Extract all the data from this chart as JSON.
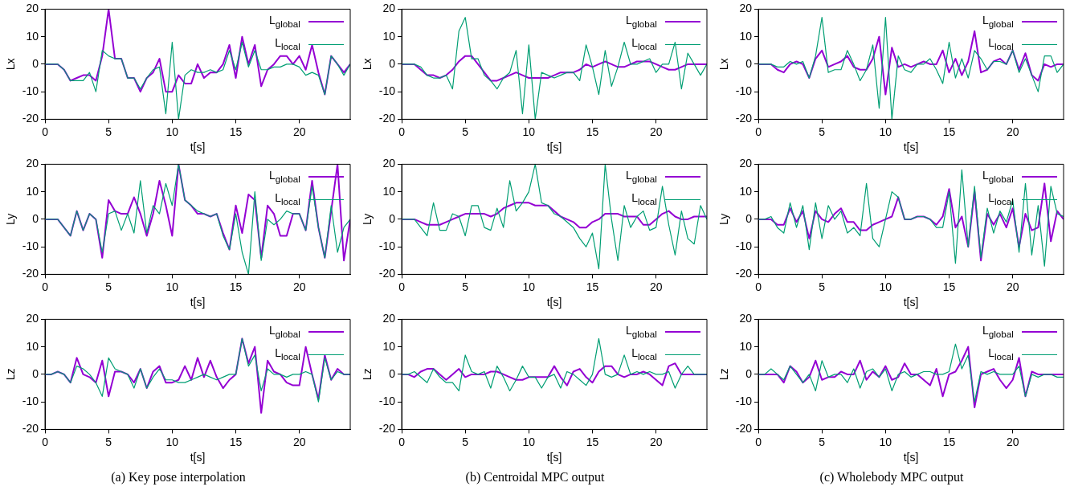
{
  "chart_data": [
    {
      "type": "line",
      "xlabel": "t[s]",
      "ylabel": "Lx",
      "xlim": [
        0,
        24
      ],
      "xticks": [
        0,
        5,
        10,
        15,
        20
      ],
      "ylim": [
        -20,
        20
      ],
      "yticks": [
        -20,
        -10,
        0,
        10,
        20
      ],
      "legend": "top right",
      "marker": "none",
      "x": [
        0,
        0.5,
        1,
        1.5,
        2,
        2.5,
        3,
        3.5,
        4,
        4.5,
        5,
        5.5,
        6,
        6.5,
        7,
        7.5,
        8,
        8.5,
        9,
        9.5,
        10,
        10.5,
        11,
        11.5,
        12,
        12.5,
        13,
        13.5,
        14,
        14.5,
        15,
        15.5,
        16,
        16.5,
        17,
        17.5,
        18,
        18.5,
        19,
        19.5,
        20,
        20.5,
        21,
        21.5,
        22,
        22.5,
        23,
        23.5,
        24
      ],
      "series": [
        {
          "name": "L$_{global}$",
          "color": "#9400d3",
          "values": [
            0,
            0,
            0,
            -2,
            -6,
            -5,
            -4,
            -4,
            -6,
            3,
            20,
            2,
            2,
            -5,
            -5,
            -10,
            -5,
            -3,
            2,
            -10,
            -10,
            -4,
            -7,
            -7,
            0,
            -5,
            -3,
            -3,
            0,
            7,
            -5,
            10,
            0,
            7,
            -8,
            -2,
            0,
            3,
            3,
            0,
            3,
            -2,
            7,
            -3,
            -11,
            3,
            0,
            -3,
            0
          ]
        },
        {
          "name": "L$_{local}$",
          "color": "#009e73",
          "values": [
            0,
            0,
            0,
            -2,
            -6,
            -6,
            -6,
            -3,
            -10,
            5,
            3,
            2,
            2,
            -5,
            -5,
            -9,
            -5,
            -2,
            -1,
            -18,
            8,
            -20,
            -4,
            -2,
            -3,
            -3,
            -2,
            -3,
            -2,
            5,
            -2,
            8,
            -1,
            5,
            -2,
            -2,
            -1,
            -1,
            0,
            0,
            -1,
            -4,
            -3,
            -4,
            -11,
            3,
            0,
            -4,
            0
          ]
        }
      ]
    },
    {
      "type": "line",
      "xlabel": "t[s]",
      "ylabel": "Lx",
      "xlim": [
        0,
        24
      ],
      "xticks": [
        0,
        5,
        10,
        15,
        20
      ],
      "ylim": [
        -20,
        20
      ],
      "yticks": [
        -20,
        -10,
        0,
        10,
        20
      ],
      "legend": "top right",
      "marker": "none",
      "x": [
        0,
        0.5,
        1,
        1.5,
        2,
        2.5,
        3,
        3.5,
        4,
        4.5,
        5,
        5.5,
        6,
        6.5,
        7,
        7.5,
        8,
        8.5,
        9,
        9.5,
        10,
        10.5,
        11,
        11.5,
        12,
        12.5,
        13,
        13.5,
        14,
        14.5,
        15,
        15.5,
        16,
        16.5,
        17,
        17.5,
        18,
        18.5,
        19,
        19.5,
        20,
        20.5,
        21,
        21.5,
        22,
        22.5,
        23,
        23.5,
        24
      ],
      "series": [
        {
          "name": "L$_{global}$",
          "color": "#9400d3",
          "values": [
            0,
            0,
            0,
            -2,
            -4,
            -4,
            -5,
            -4,
            -2,
            1,
            3,
            3,
            0,
            -3,
            -6,
            -6,
            -5,
            -4,
            -3,
            -4,
            -5,
            -5,
            -5,
            -5,
            -4,
            -3,
            -3,
            -3,
            -2,
            0,
            -1,
            0,
            1,
            0,
            -1,
            -1,
            0,
            1,
            1,
            1,
            0,
            -1,
            -2,
            -2,
            -1,
            0,
            0,
            0,
            0
          ]
        },
        {
          "name": "L$_{local}$",
          "color": "#009e73",
          "values": [
            0,
            0,
            0,
            -1,
            -4,
            -5,
            -5,
            -4,
            -9,
            12,
            17,
            2,
            2,
            -4,
            -6,
            -9,
            -5,
            -3,
            5,
            -18,
            7,
            -20,
            -3,
            -4,
            -5,
            -4,
            -3,
            -3,
            -6,
            7,
            -1,
            -11,
            5,
            -8,
            -1,
            8,
            0,
            0,
            1,
            2,
            -3,
            0,
            0,
            8,
            -9,
            4,
            0,
            -4,
            0
          ]
        }
      ]
    },
    {
      "type": "line",
      "xlabel": "t[s]",
      "ylabel": "Lx",
      "xlim": [
        0,
        24
      ],
      "xticks": [
        0,
        5,
        10,
        15,
        20
      ],
      "ylim": [
        -20,
        20
      ],
      "yticks": [
        -20,
        -10,
        0,
        10,
        20
      ],
      "legend": "top right",
      "marker": "none",
      "x": [
        0,
        0.5,
        1,
        1.5,
        2,
        2.5,
        3,
        3.5,
        4,
        4.5,
        5,
        5.5,
        6,
        6.5,
        7,
        7.5,
        8,
        8.5,
        9,
        9.5,
        10,
        10.5,
        11,
        11.5,
        12,
        12.5,
        13,
        13.5,
        14,
        14.5,
        15,
        15.5,
        16,
        16.5,
        17,
        17.5,
        18,
        18.5,
        19,
        19.5,
        20,
        20.5,
        21,
        21.5,
        22,
        22.5,
        23,
        23.5,
        24
      ],
      "series": [
        {
          "name": "L$_{global}$",
          "color": "#9400d3",
          "values": [
            0,
            0,
            0,
            -2,
            -3,
            0,
            1,
            0,
            -5,
            2,
            5,
            -1,
            0,
            1,
            3,
            -1,
            -2,
            -2,
            2,
            10,
            -11,
            6,
            -1,
            0,
            -1,
            0,
            1,
            0,
            0,
            5,
            -3,
            2,
            -4,
            1,
            12,
            -3,
            -2,
            1,
            2,
            0,
            5,
            -2,
            4,
            -4,
            -6,
            0,
            -1,
            0,
            0
          ]
        },
        {
          "name": "L$_{local}$",
          "color": "#009e73",
          "values": [
            0,
            0,
            0,
            -1,
            -1,
            1,
            0,
            1,
            -5,
            3,
            17,
            -3,
            -2,
            -2,
            5,
            0,
            -6,
            -2,
            7,
            -16,
            17,
            -20,
            3,
            -2,
            -3,
            0,
            0,
            2,
            -2,
            -7,
            8,
            -5,
            2,
            -5,
            5,
            2,
            -2,
            1,
            1,
            0,
            5,
            -3,
            2,
            -4,
            -10,
            3,
            3,
            -3,
            0
          ]
        }
      ]
    },
    {
      "type": "line",
      "xlabel": "t[s]",
      "ylabel": "Ly",
      "xlim": [
        0,
        24
      ],
      "xticks": [
        0,
        5,
        10,
        15,
        20
      ],
      "ylim": [
        -20,
        20
      ],
      "yticks": [
        -20,
        -10,
        0,
        10,
        20
      ],
      "legend": "top right",
      "marker": "none",
      "x": [
        0,
        0.5,
        1,
        1.5,
        2,
        2.5,
        3,
        3.5,
        4,
        4.5,
        5,
        5.5,
        6,
        6.5,
        7,
        7.5,
        8,
        8.5,
        9,
        9.5,
        10,
        10.5,
        11,
        11.5,
        12,
        12.5,
        13,
        13.5,
        14,
        14.5,
        15,
        15.5,
        16,
        16.5,
        17,
        17.5,
        18,
        18.5,
        19,
        19.5,
        20,
        20.5,
        21,
        21.5,
        22,
        22.5,
        23,
        23.5,
        24
      ],
      "series": [
        {
          "name": "L$_{global}$",
          "color": "#9400d3",
          "values": [
            0,
            0,
            0,
            -3,
            -6,
            3,
            -4,
            2,
            0,
            -14,
            7,
            3,
            2,
            2,
            8,
            2,
            -6,
            2,
            14,
            5,
            -6,
            20,
            7,
            5,
            2,
            2,
            1,
            2,
            -5,
            -11,
            5,
            -5,
            9,
            7,
            -14,
            5,
            2,
            -6,
            -6,
            2,
            2,
            -4,
            14,
            -3,
            -14,
            3,
            20,
            -15,
            0
          ]
        },
        {
          "name": "L$_{local}$",
          "color": "#009e73",
          "values": [
            0,
            0,
            0,
            -3,
            -6,
            3,
            -4,
            2,
            0,
            -12,
            2,
            3,
            -4,
            2,
            -5,
            14,
            -5,
            5,
            2,
            13,
            5,
            20,
            7,
            5,
            3,
            2,
            1,
            2,
            -6,
            -11,
            2,
            -12,
            -20,
            10,
            -15,
            0,
            -2,
            0,
            3,
            2,
            2,
            -4,
            12,
            -3,
            -14,
            5,
            -12,
            -3,
            0
          ]
        }
      ]
    },
    {
      "type": "line",
      "xlabel": "t[s]",
      "ylabel": "Ly",
      "xlim": [
        0,
        24
      ],
      "xticks": [
        0,
        5,
        10,
        15,
        20
      ],
      "ylim": [
        -20,
        20
      ],
      "yticks": [
        -20,
        -10,
        0,
        10,
        20
      ],
      "legend": "top right",
      "marker": "none",
      "x": [
        0,
        0.5,
        1,
        1.5,
        2,
        2.5,
        3,
        3.5,
        4,
        4.5,
        5,
        5.5,
        6,
        6.5,
        7,
        7.5,
        8,
        8.5,
        9,
        9.5,
        10,
        10.5,
        11,
        11.5,
        12,
        12.5,
        13,
        13.5,
        14,
        14.5,
        15,
        15.5,
        16,
        16.5,
        17,
        17.5,
        18,
        18.5,
        19,
        19.5,
        20,
        20.5,
        21,
        21.5,
        22,
        22.5,
        23,
        23.5,
        24
      ],
      "series": [
        {
          "name": "L$_{global}$",
          "color": "#9400d3",
          "values": [
            0,
            0,
            0,
            -1,
            -2,
            -2,
            -2,
            -1,
            0,
            1,
            2,
            2,
            2,
            2,
            1,
            2,
            4,
            5,
            6,
            6,
            6,
            5,
            5,
            5,
            3,
            1,
            0,
            -1,
            -3,
            -3,
            -1,
            0,
            2,
            2,
            2,
            1,
            1,
            1,
            -2,
            -2,
            0,
            2,
            3,
            1,
            0,
            0,
            1,
            1,
            1
          ]
        },
        {
          "name": "L$_{local}$",
          "color": "#009e73",
          "values": [
            0,
            0,
            0,
            -3,
            -6,
            6,
            -4,
            -4,
            2,
            1,
            -6,
            5,
            5,
            -3,
            -4,
            4,
            -3,
            14,
            3,
            6,
            10,
            20,
            6,
            5,
            2,
            1,
            -1,
            -3,
            -7,
            -10,
            -5,
            -18,
            20,
            0,
            -15,
            5,
            -3,
            1,
            3,
            -4,
            -3,
            12,
            -2,
            -13,
            3,
            -7,
            -9,
            5,
            0
          ]
        }
      ]
    },
    {
      "type": "line",
      "xlabel": "t[s]",
      "ylabel": "Ly",
      "xlim": [
        0,
        24
      ],
      "xticks": [
        0,
        5,
        10,
        15,
        20
      ],
      "ylim": [
        -20,
        20
      ],
      "yticks": [
        -20,
        -10,
        0,
        10,
        20
      ],
      "legend": "top right",
      "marker": "none",
      "x": [
        0,
        0.5,
        1,
        1.5,
        2,
        2.5,
        3,
        3.5,
        4,
        4.5,
        5,
        5.5,
        6,
        6.5,
        7,
        7.5,
        8,
        8.5,
        9,
        9.5,
        10,
        10.5,
        11,
        11.5,
        12,
        12.5,
        13,
        13.5,
        14,
        14.5,
        15,
        15.5,
        16,
        16.5,
        17,
        17.5,
        18,
        18.5,
        19,
        19.5,
        20,
        20.5,
        21,
        21.5,
        22,
        22.5,
        23,
        23.5,
        24
      ],
      "series": [
        {
          "name": "L$_{global}$",
          "color": "#9400d3",
          "values": [
            0,
            0,
            0,
            -2,
            -2,
            4,
            -1,
            3,
            -7,
            3,
            0,
            -1,
            2,
            4,
            -1,
            -1,
            -4,
            -4,
            -2,
            -1,
            0,
            1,
            8,
            0,
            0,
            1,
            1,
            0,
            -2,
            1,
            11,
            -3,
            1,
            -10,
            10,
            -15,
            2,
            -2,
            2,
            -3,
            4,
            -10,
            2,
            -4,
            -3,
            13,
            -8,
            3,
            0
          ]
        },
        {
          "name": "L$_{local}$",
          "color": "#009e73",
          "values": [
            0,
            0,
            1,
            -3,
            -5,
            6,
            -3,
            5,
            -11,
            6,
            -7,
            5,
            0,
            3,
            -5,
            -3,
            -6,
            13,
            -7,
            -10,
            0,
            10,
            8,
            0,
            0,
            1,
            1,
            0,
            -3,
            -3,
            10,
            -16,
            18,
            -10,
            12,
            -14,
            4,
            -5,
            3,
            -1,
            7,
            -12,
            13,
            -13,
            5,
            -17,
            12,
            2,
            1
          ]
        }
      ]
    },
    {
      "type": "line",
      "xlabel": "t[s]",
      "ylabel": "Lz",
      "xlim": [
        0,
        24
      ],
      "xticks": [
        0,
        5,
        10,
        15,
        20
      ],
      "ylim": [
        -20,
        20
      ],
      "yticks": [
        -20,
        -10,
        0,
        10,
        20
      ],
      "legend": "top right",
      "marker": "none",
      "annotations": [
        "(a) Key pose interpolation"
      ],
      "x": [
        0,
        0.5,
        1,
        1.5,
        2,
        2.5,
        3,
        3.5,
        4,
        4.5,
        5,
        5.5,
        6,
        6.5,
        7,
        7.5,
        8,
        8.5,
        9,
        9.5,
        10,
        10.5,
        11,
        11.5,
        12,
        12.5,
        13,
        13.5,
        14,
        14.5,
        15,
        15.5,
        16,
        16.5,
        17,
        17.5,
        18,
        18.5,
        19,
        19.5,
        20,
        20.5,
        21,
        21.5,
        22,
        22.5,
        23,
        23.5,
        24
      ],
      "series": [
        {
          "name": "L$_{global}$",
          "color": "#9400d3",
          "values": [
            0,
            0,
            1,
            0,
            -3,
            6,
            0,
            -1,
            -3,
            5,
            -8,
            1,
            1,
            0,
            -3,
            2,
            -5,
            1,
            3,
            -3,
            -3,
            -2,
            3,
            -2,
            6,
            -1,
            5,
            -1,
            -5,
            -2,
            0,
            13,
            4,
            10,
            -14,
            5,
            1,
            0,
            -3,
            -4,
            -4,
            10,
            0,
            -9,
            7,
            -2,
            2,
            0,
            0
          ]
        },
        {
          "name": "L$_{local}$",
          "color": "#009e73",
          "values": [
            0,
            0,
            1,
            0,
            -3,
            3,
            2,
            0,
            -3,
            -8,
            6,
            2,
            1,
            0,
            -5,
            2,
            -5,
            -1,
            2,
            -2,
            -2,
            -3,
            -3,
            -2,
            -1,
            0,
            -1,
            -2,
            -1,
            0,
            0,
            13,
            3,
            7,
            -6,
            2,
            0,
            0,
            -1,
            0,
            0,
            1,
            0,
            -10,
            6,
            -2,
            1,
            0,
            0
          ]
        }
      ]
    },
    {
      "type": "line",
      "xlabel": "t[s]",
      "ylabel": "Lz",
      "xlim": [
        0,
        24
      ],
      "xticks": [
        0,
        5,
        10,
        15,
        20
      ],
      "ylim": [
        -20,
        20
      ],
      "yticks": [
        -20,
        -10,
        0,
        10,
        20
      ],
      "legend": "top right",
      "marker": "none",
      "annotations": [
        "(b) Centroidal MPC output"
      ],
      "x": [
        0,
        0.5,
        1,
        1.5,
        2,
        2.5,
        3,
        3.5,
        4,
        4.5,
        5,
        5.5,
        6,
        6.5,
        7,
        7.5,
        8,
        8.5,
        9,
        9.5,
        10,
        10.5,
        11,
        11.5,
        12,
        12.5,
        13,
        13.5,
        14,
        14.5,
        15,
        15.5,
        16,
        16.5,
        17,
        17.5,
        18,
        18.5,
        19,
        19.5,
        20,
        20.5,
        21,
        21.5,
        22,
        22.5,
        23,
        23.5,
        24
      ],
      "series": [
        {
          "name": "L$_{global}$",
          "color": "#9400d3",
          "values": [
            0,
            0,
            -1,
            1,
            2,
            2,
            0,
            -2,
            0,
            2,
            -1,
            0,
            0,
            0,
            1,
            1,
            0,
            -1,
            -2,
            -2,
            -1,
            -1,
            -1,
            -1,
            3,
            -1,
            -4,
            1,
            2,
            -1,
            -3,
            1,
            3,
            3,
            0,
            -1,
            0,
            0,
            1,
            0,
            -2,
            -4,
            3,
            4,
            0,
            0,
            0,
            0,
            0
          ]
        },
        {
          "name": "L$_{local}$",
          "color": "#009e73",
          "values": [
            0,
            0,
            1,
            -1,
            -3,
            2,
            -1,
            -3,
            -3,
            -6,
            7,
            1,
            0,
            1,
            -5,
            3,
            -1,
            -6,
            -2,
            3,
            -1,
            -1,
            -5,
            -1,
            0,
            -5,
            1,
            0,
            -2,
            -4,
            0,
            13,
            0,
            -1,
            0,
            7,
            0,
            1,
            0,
            1,
            0,
            0,
            1,
            -5,
            0,
            3,
            0,
            0,
            0
          ]
        }
      ]
    },
    {
      "type": "line",
      "xlabel": "t[s]",
      "ylabel": "Lz",
      "xlim": [
        0,
        24
      ],
      "xticks": [
        0,
        5,
        10,
        15,
        20
      ],
      "ylim": [
        -20,
        20
      ],
      "yticks": [
        -20,
        -10,
        0,
        10,
        20
      ],
      "legend": "top right",
      "marker": "none",
      "annotations": [
        "(c) Wholebody MPC output"
      ],
      "x": [
        0,
        0.5,
        1,
        1.5,
        2,
        2.5,
        3,
        3.5,
        4,
        4.5,
        5,
        5.5,
        6,
        6.5,
        7,
        7.5,
        8,
        8.5,
        9,
        9.5,
        10,
        10.5,
        11,
        11.5,
        12,
        12.5,
        13,
        13.5,
        14,
        14.5,
        15,
        15.5,
        16,
        16.5,
        17,
        17.5,
        18,
        18.5,
        19,
        19.5,
        20,
        20.5,
        21,
        21.5,
        22,
        22.5,
        23,
        23.5,
        24
      ],
      "series": [
        {
          "name": "L$_{global}$",
          "color": "#9400d3",
          "values": [
            0,
            0,
            0,
            0,
            -3,
            3,
            1,
            -3,
            -1,
            5,
            -2,
            -1,
            -1,
            1,
            0,
            0,
            5,
            -2,
            1,
            -1,
            3,
            -2,
            -1,
            4,
            0,
            0,
            -2,
            -4,
            2,
            -8,
            0,
            1,
            5,
            10,
            -12,
            0,
            1,
            2,
            -2,
            -5,
            -2,
            6,
            -8,
            1,
            0,
            0,
            0,
            0,
            0
          ]
        },
        {
          "name": "L$_{local}$",
          "color": "#009e73",
          "values": [
            0,
            0,
            2,
            0,
            -2,
            3,
            0,
            -3,
            0,
            -6,
            5,
            -1,
            0,
            0,
            -3,
            2,
            -5,
            1,
            2,
            -1,
            2,
            -6,
            0,
            1,
            -1,
            0,
            1,
            1,
            0,
            0,
            1,
            11,
            2,
            7,
            -10,
            1,
            0,
            1,
            0,
            0,
            0,
            3,
            -8,
            0,
            -1,
            0,
            0,
            -1,
            -1
          ]
        }
      ]
    }
  ]
}
